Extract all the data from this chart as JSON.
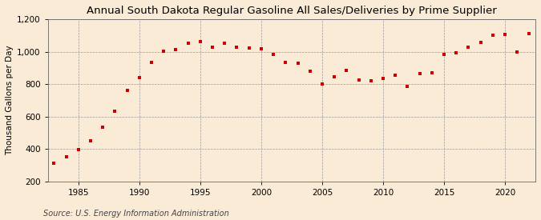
{
  "title": "Annual South Dakota Regular Gasoline All Sales/Deliveries by Prime Supplier",
  "ylabel": "Thousand Gallons per Day",
  "source": "Source: U.S. Energy Information Administration",
  "background_color": "#faebd7",
  "marker_color": "#cc0000",
  "years": [
    1983,
    1984,
    1985,
    1986,
    1987,
    1988,
    1989,
    1990,
    1991,
    1992,
    1993,
    1994,
    1995,
    1996,
    1997,
    1998,
    1999,
    2000,
    2001,
    2002,
    2003,
    2004,
    2005,
    2006,
    2007,
    2008,
    2009,
    2010,
    2011,
    2012,
    2013,
    2014,
    2015,
    2016,
    2017,
    2018,
    2019,
    2020,
    2021,
    2022
  ],
  "values": [
    315,
    355,
    395,
    450,
    535,
    635,
    760,
    840,
    935,
    1005,
    1010,
    1050,
    1060,
    1025,
    1050,
    1025,
    1020,
    1015,
    985,
    935,
    930,
    880,
    800,
    845,
    885,
    825,
    820,
    835,
    855,
    785,
    865,
    870,
    985,
    995,
    1025,
    1055,
    1100,
    1105,
    1000,
    1110
  ],
  "ylim": [
    200,
    1200
  ],
  "yticks": [
    200,
    400,
    600,
    800,
    1000,
    1200
  ],
  "xlim": [
    1982.5,
    2022.5
  ],
  "xticks": [
    1985,
    1990,
    1995,
    2000,
    2005,
    2010,
    2015,
    2020
  ],
  "grid_color": "#999999",
  "title_fontsize": 9.5,
  "ylabel_fontsize": 7.5,
  "source_fontsize": 7,
  "tick_fontsize": 7.5
}
